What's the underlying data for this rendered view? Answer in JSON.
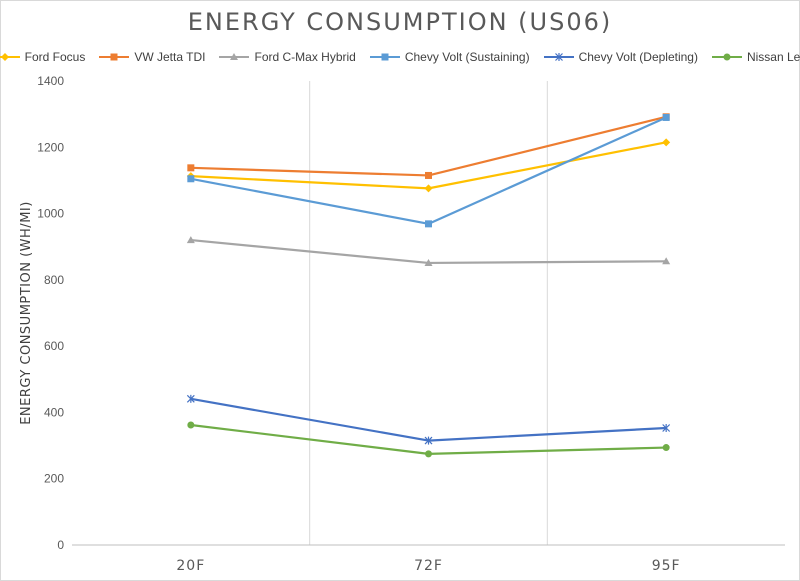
{
  "chart_data": {
    "type": "line",
    "title": "ENERGY CONSUMPTION (US06)",
    "ylabel": "ENERGY CONSUMPTION (WH/MI)",
    "xlabel": "",
    "categories": [
      "20F",
      "72F",
      "95F"
    ],
    "ylim": [
      0,
      1400
    ],
    "yticks": [
      0,
      200,
      400,
      600,
      800,
      1000,
      1200,
      1400
    ],
    "grid": "vertical",
    "legend_position": "top",
    "series": [
      {
        "name": "Ford Focus",
        "values": [
          1113,
          1076,
          1215
        ],
        "color": "#FFC000",
        "marker": "diamond"
      },
      {
        "name": "VW Jetta TDI",
        "values": [
          1138,
          1115,
          1292
        ],
        "color": "#ED7D31",
        "marker": "square"
      },
      {
        "name": "Ford C-Max Hybrid",
        "values": [
          920,
          851,
          856
        ],
        "color": "#A5A5A5",
        "marker": "triangle"
      },
      {
        "name": "Chevy Volt (Sustaining)",
        "values": [
          1105,
          969,
          1290
        ],
        "color": "#5B9BD5",
        "marker": "square"
      },
      {
        "name": "Chevy Volt (Depleting)",
        "values": [
          441,
          315,
          353
        ],
        "color": "#4472C4",
        "marker": "star"
      },
      {
        "name": "Nissan Leaf",
        "values": [
          362,
          275,
          294
        ],
        "color": "#70AD47",
        "marker": "circle"
      }
    ]
  }
}
